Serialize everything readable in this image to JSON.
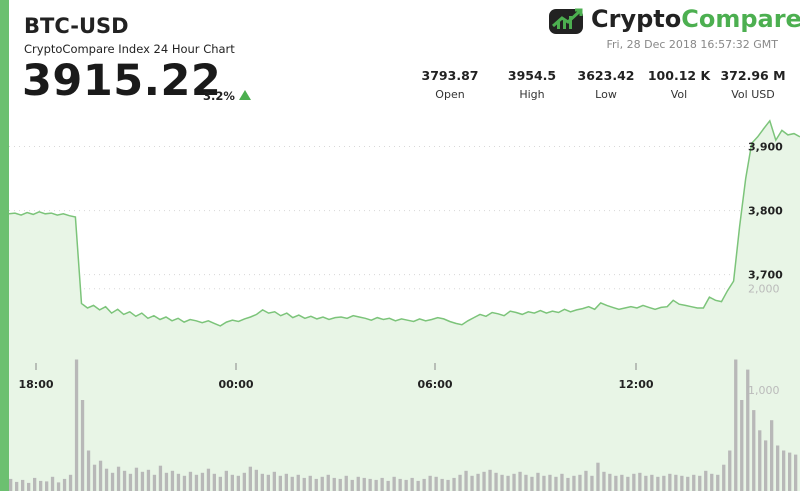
{
  "header": {
    "pair": "BTC-USD",
    "subtitle": "CryptoCompare Index 24 Hour Chart",
    "price": "3915.22",
    "change": "3.2%",
    "logo_part1": "Crypto",
    "logo_part2": "Compare",
    "timestamp": "Fri, 28 Dec 2018 16:57:32 GMT"
  },
  "stats": [
    {
      "value": "3793.87",
      "label": "Open"
    },
    {
      "value": "3954.5",
      "label": "High"
    },
    {
      "value": "3623.42",
      "label": "Low"
    },
    {
      "value": "100.12 K",
      "label": "Vol"
    },
    {
      "value": "372.96 M",
      "label": "Vol USD"
    }
  ],
  "colors": {
    "accent": "#6cc070",
    "line": "#7cc47a",
    "fill": "#e8f5e6",
    "volume": "#b8b8b8",
    "up": "#4caf50"
  },
  "chart_data": {
    "type": "line",
    "x_ticks": [
      "18:00",
      "00:00",
      "06:00",
      "12:00"
    ],
    "price_ticks": [
      3700,
      3800,
      3900
    ],
    "volume_ticks": [
      "2,000",
      "1,000"
    ],
    "ylim_price": [
      3570,
      3960
    ],
    "ylim_volume": [
      0,
      2600
    ],
    "series": [
      {
        "values": [
          3795,
          3796,
          3793,
          3797,
          3794,
          3798,
          3795,
          3796,
          3793,
          3795,
          3792,
          3790,
          3655,
          3648,
          3652,
          3645,
          3650,
          3640,
          3646,
          3638,
          3642,
          3635,
          3640,
          3632,
          3636,
          3630,
          3634,
          3628,
          3632,
          3626,
          3630,
          3628,
          3625,
          3628,
          3624,
          3620,
          3626,
          3629,
          3627,
          3631,
          3634,
          3638,
          3645,
          3640,
          3642,
          3636,
          3640,
          3633,
          3637,
          3632,
          3635,
          3631,
          3634,
          3630,
          3633,
          3634,
          3632,
          3636,
          3634,
          3632,
          3629,
          3633,
          3630,
          3632,
          3628,
          3631,
          3629,
          3627,
          3631,
          3628,
          3630,
          3633,
          3631,
          3627,
          3624,
          3622,
          3628,
          3633,
          3638,
          3635,
          3641,
          3639,
          3636,
          3643,
          3641,
          3638,
          3642,
          3640,
          3644,
          3640,
          3643,
          3641,
          3646,
          3642,
          3645,
          3647,
          3650,
          3646,
          3656,
          3652,
          3649,
          3646,
          3648,
          3650,
          3648,
          3652,
          3649,
          3646,
          3649,
          3650,
          3660,
          3654,
          3652,
          3650,
          3648,
          3648,
          3665,
          3660,
          3658,
          3675,
          3690,
          3775,
          3850,
          3905,
          3915,
          3928,
          3940,
          3910,
          3925,
          3918,
          3920,
          3915
        ]
      }
    ],
    "volume": [
      120,
      90,
      110,
      80,
      130,
      100,
      95,
      140,
      85,
      120,
      160,
      1300,
      900,
      400,
      260,
      300,
      220,
      180,
      240,
      200,
      170,
      230,
      190,
      210,
      160,
      250,
      180,
      200,
      170,
      150,
      190,
      160,
      180,
      220,
      170,
      140,
      200,
      160,
      150,
      180,
      240,
      210,
      170,
      160,
      190,
      150,
      170,
      140,
      160,
      130,
      150,
      120,
      140,
      160,
      130,
      120,
      150,
      110,
      140,
      130,
      120,
      110,
      130,
      100,
      140,
      120,
      110,
      130,
      100,
      120,
      150,
      140,
      120,
      110,
      130,
      160,
      200,
      150,
      170,
      190,
      210,
      180,
      160,
      150,
      170,
      190,
      160,
      140,
      180,
      150,
      160,
      140,
      170,
      130,
      150,
      160,
      200,
      150,
      280,
      190,
      170,
      150,
      160,
      140,
      170,
      180,
      150,
      160,
      140,
      150,
      170,
      160,
      150,
      140,
      160,
      150,
      200,
      170,
      160,
      260,
      400,
      1300,
      900,
      1200,
      800,
      600,
      500,
      700,
      450,
      400,
      380,
      360
    ]
  }
}
